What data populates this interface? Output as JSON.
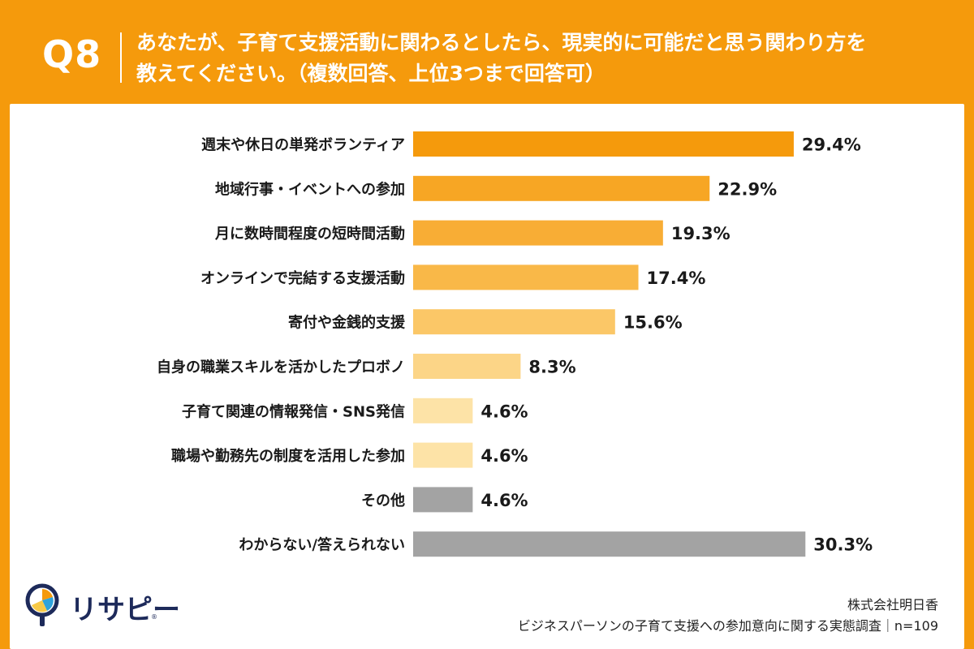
{
  "header": {
    "qnum": "Q8",
    "question_line1": "あなたが、子育て支援活動に関わるとしたら、現実的に可能だと思う関わり方を",
    "question_line2": "教えてください。（複数回答、上位3つまで回答可）"
  },
  "chart_data": {
    "type": "bar",
    "orientation": "horizontal",
    "unit": "%",
    "xlim": [
      0,
      31
    ],
    "grid": false,
    "categories": [
      "週末や休日の単発ボランティア",
      "地域行事・イベントへの参加",
      "月に数時間程度の短時間活動",
      "オンラインで完結する支援活動",
      "寄付や金銭的支援",
      "自身の職業スキルを活かしたプロボノ",
      "子育て関連の情報発信・SNS発信",
      "職場や勤務先の制度を活用した参加",
      "その他",
      "わからない/答えられない"
    ],
    "values": [
      29.4,
      22.9,
      19.3,
      17.4,
      15.6,
      8.3,
      4.6,
      4.6,
      4.6,
      30.3
    ],
    "value_labels": [
      "29.4%",
      "22.9%",
      "19.3%",
      "17.4%",
      "15.6%",
      "8.3%",
      "4.6%",
      "4.6%",
      "4.6%",
      "30.3%"
    ],
    "colors": [
      "#f59a0c",
      "#f7a624",
      "#f8ad35",
      "#f9b848",
      "#fbc767",
      "#fcd587",
      "#fde3a7",
      "#fde3a7",
      "#a3a3a3",
      "#a3a3a3"
    ]
  },
  "footer": {
    "brand": "リサピー",
    "company": "株式会社明日香",
    "survey": "ビジネスパーソンの子育て支援への参加意向に関する実態調査｜n=109"
  }
}
